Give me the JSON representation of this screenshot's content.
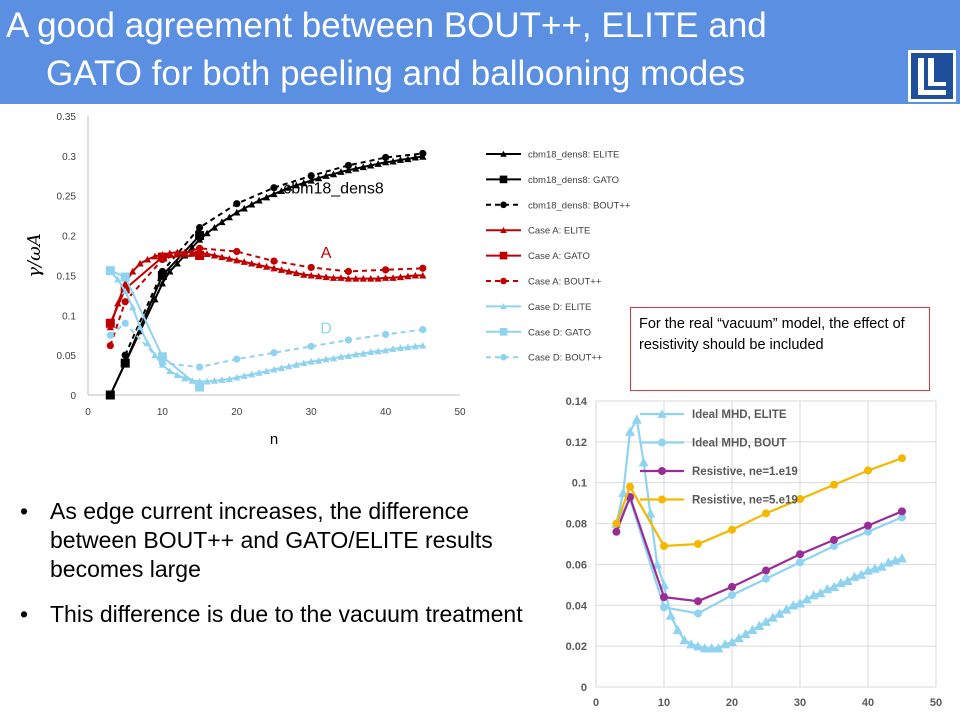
{
  "title": {
    "line1": "A good agreement between BOUT++, ELITE and",
    "line2": "GATO for both peeling and ballooning modes"
  },
  "bullets": [
    "As edge current increases, the difference between BOUT++ and GATO/ELITE results becomes large",
    "This difference is due to the vacuum treatment"
  ],
  "note": "For the real “vacuum” model, the effect of resistivity should be included",
  "colors": {
    "title_bg": "#5b8fe2",
    "black": "#000000",
    "red": "#c00000",
    "cyan": "#8fd3f0",
    "purple": "#9b2c96",
    "orange": "#f5b800"
  },
  "chart_data": [
    {
      "type": "line",
      "xlabel": "n",
      "ylabel": "γ/ωA",
      "xlim": [
        0,
        50
      ],
      "ylim": [
        0,
        0.35
      ],
      "xticks": [
        "0",
        "10",
        "20",
        "30",
        "40",
        "50"
      ],
      "yticks": [
        "0",
        "0.05",
        "0.1",
        "0.15",
        "0.2",
        "0.25",
        "0.3",
        "0.35"
      ],
      "grid": false,
      "legend": "right",
      "annotations": [
        {
          "text": "cbm18_dens8",
          "x": 33,
          "y": 0.253,
          "color": "#000000"
        },
        {
          "text": "A",
          "x": 32,
          "y": 0.172,
          "color": "#c00000"
        },
        {
          "text": "D",
          "x": 32,
          "y": 0.077,
          "color": "#8fd3f0"
        }
      ],
      "series": [
        {
          "name": "cbm18_dens8: ELITE",
          "color": "#000000",
          "dash": false,
          "marker": "triangle",
          "x": [
            3,
            5,
            7,
            9,
            10,
            11,
            12,
            13,
            14,
            15,
            16,
            17,
            18,
            19,
            20,
            21,
            22,
            23,
            24,
            25,
            26,
            27,
            28,
            29,
            30,
            31,
            32,
            33,
            34,
            35,
            36,
            37,
            38,
            39,
            40,
            41,
            42,
            43,
            44,
            45
          ],
          "y": [
            0,
            0.04,
            0.08,
            0.12,
            0.14,
            0.155,
            0.165,
            0.175,
            0.185,
            0.195,
            0.203,
            0.21,
            0.217,
            0.223,
            0.229,
            0.234,
            0.239,
            0.244,
            0.248,
            0.252,
            0.256,
            0.26,
            0.263,
            0.266,
            0.269,
            0.272,
            0.275,
            0.277,
            0.28,
            0.282,
            0.284,
            0.286,
            0.288,
            0.29,
            0.292,
            0.293,
            0.295,
            0.296,
            0.298,
            0.299
          ]
        },
        {
          "name": "cbm18_dens8: GATO",
          "color": "#000000",
          "dash": false,
          "marker": "square",
          "x": [
            3,
            5,
            10,
            15
          ],
          "y": [
            0,
            0.04,
            0.15,
            0.2
          ]
        },
        {
          "name": "cbm18_dens8: BOUT++",
          "color": "#000000",
          "dash": true,
          "marker": "circle",
          "x": [
            5,
            10,
            15,
            20,
            25,
            30,
            35,
            40,
            45
          ],
          "y": [
            0.05,
            0.155,
            0.21,
            0.24,
            0.26,
            0.275,
            0.288,
            0.298,
            0.303
          ]
        },
        {
          "name": "Case A: ELITE",
          "color": "#c00000",
          "dash": false,
          "marker": "triangle",
          "x": [
            3,
            4,
            5,
            6,
            7,
            8,
            9,
            10,
            11,
            12,
            13,
            14,
            15,
            16,
            17,
            18,
            19,
            20,
            21,
            22,
            23,
            24,
            25,
            26,
            27,
            28,
            29,
            30,
            31,
            32,
            33,
            34,
            35,
            36,
            37,
            38,
            39,
            40,
            41,
            42,
            43,
            44,
            45
          ],
          "y": [
            0.085,
            0.115,
            0.14,
            0.155,
            0.165,
            0.17,
            0.174,
            0.176,
            0.178,
            0.179,
            0.179,
            0.179,
            0.178,
            0.177,
            0.175,
            0.173,
            0.171,
            0.169,
            0.167,
            0.165,
            0.163,
            0.161,
            0.159,
            0.157,
            0.155,
            0.153,
            0.151,
            0.15,
            0.149,
            0.148,
            0.147,
            0.147,
            0.146,
            0.146,
            0.146,
            0.146,
            0.146,
            0.147,
            0.147,
            0.148,
            0.149,
            0.15,
            0.15
          ]
        },
        {
          "name": "Case A: GATO",
          "color": "#c00000",
          "dash": false,
          "marker": "square",
          "x": [
            3,
            5,
            10,
            15
          ],
          "y": [
            0.09,
            0.133,
            0.173,
            0.175
          ]
        },
        {
          "name": "Case A: BOUT++",
          "color": "#c00000",
          "dash": true,
          "marker": "circle",
          "x": [
            3,
            5,
            10,
            15,
            20,
            25,
            30,
            35,
            40,
            45
          ],
          "y": [
            0.062,
            0.117,
            0.17,
            0.184,
            0.18,
            0.168,
            0.16,
            0.155,
            0.157,
            0.159
          ]
        },
        {
          "name": "Case D: ELITE",
          "color": "#8fd3f0",
          "dash": false,
          "marker": "triangle",
          "x": [
            3,
            4,
            5,
            6,
            7,
            8,
            9,
            10,
            11,
            12,
            13,
            14,
            15,
            16,
            17,
            18,
            19,
            20,
            21,
            22,
            23,
            24,
            25,
            26,
            27,
            28,
            29,
            30,
            31,
            32,
            33,
            34,
            35,
            36,
            37,
            38,
            39,
            40,
            41,
            42,
            43,
            44,
            45
          ],
          "y": [
            0.155,
            0.145,
            0.13,
            0.11,
            0.085,
            0.065,
            0.05,
            0.038,
            0.03,
            0.025,
            0.021,
            0.018,
            0.017,
            0.017,
            0.018,
            0.019,
            0.02,
            0.022,
            0.024,
            0.026,
            0.028,
            0.03,
            0.032,
            0.034,
            0.036,
            0.038,
            0.04,
            0.042,
            0.043,
            0.045,
            0.046,
            0.048,
            0.049,
            0.051,
            0.052,
            0.054,
            0.055,
            0.056,
            0.058,
            0.059,
            0.06,
            0.061,
            0.062
          ]
        },
        {
          "name": "Case D: GATO",
          "color": "#8fd3f0",
          "dash": false,
          "marker": "square",
          "x": [
            3,
            5,
            10,
            15
          ],
          "y": [
            0.156,
            0.148,
            0.048,
            0.01
          ]
        },
        {
          "name": "Case D: BOUT++",
          "color": "#8fd3f0",
          "dash": true,
          "marker": "circle",
          "x": [
            3,
            5,
            10,
            15,
            20,
            25,
            30,
            35,
            40,
            45
          ],
          "y": [
            0.075,
            0.09,
            0.04,
            0.035,
            0.045,
            0.053,
            0.061,
            0.069,
            0.076,
            0.082
          ]
        }
      ]
    },
    {
      "type": "line",
      "xlim": [
        0,
        50
      ],
      "ylim": [
        0,
        0.14
      ],
      "xticks": [
        "0",
        "10",
        "20",
        "30",
        "40",
        "50"
      ],
      "yticks": [
        "0",
        "0.02",
        "0.04",
        "0.06",
        "0.08",
        "0.1",
        "0.12",
        "0.14"
      ],
      "grid": true,
      "legend": "top-left",
      "series": [
        {
          "name": "Ideal MHD, ELITE",
          "color": "#8fd3f0",
          "marker": "triangle",
          "x": [
            3,
            4,
            5,
            6,
            7,
            8,
            9,
            10,
            11,
            12,
            13,
            14,
            15,
            16,
            17,
            18,
            19,
            20,
            21,
            22,
            23,
            24,
            25,
            26,
            27,
            28,
            29,
            30,
            31,
            32,
            33,
            34,
            35,
            36,
            37,
            38,
            39,
            40,
            41,
            42,
            43,
            44,
            45
          ],
          "y": [
            0.08,
            0.095,
            0.125,
            0.131,
            0.11,
            0.085,
            0.06,
            0.05,
            0.035,
            0.028,
            0.023,
            0.021,
            0.02,
            0.019,
            0.019,
            0.019,
            0.021,
            0.022,
            0.024,
            0.026,
            0.028,
            0.03,
            0.032,
            0.034,
            0.036,
            0.038,
            0.04,
            0.041,
            0.043,
            0.045,
            0.046,
            0.048,
            0.049,
            0.051,
            0.052,
            0.054,
            0.055,
            0.057,
            0.058,
            0.059,
            0.061,
            0.062,
            0.063
          ]
        },
        {
          "name": "Ideal MHD, BOUT",
          "color": "#8fd3f0",
          "marker": "circle",
          "x": [
            3,
            5,
            10,
            15,
            20,
            25,
            30,
            35,
            40,
            45
          ],
          "y": [
            0.08,
            0.092,
            0.039,
            0.036,
            0.045,
            0.053,
            0.061,
            0.069,
            0.076,
            0.083
          ]
        },
        {
          "name": "Resistive, ne=1.e19",
          "color": "#9b2c96",
          "marker": "circle",
          "x": [
            3,
            5,
            10,
            15,
            20,
            25,
            30,
            35,
            40,
            45
          ],
          "y": [
            0.076,
            0.093,
            0.044,
            0.042,
            0.049,
            0.057,
            0.065,
            0.072,
            0.079,
            0.086
          ]
        },
        {
          "name": "Resistive, ne=5.e19",
          "color": "#f5b800",
          "marker": "circle",
          "x": [
            3,
            5,
            10,
            15,
            20,
            25,
            30,
            35,
            40,
            45
          ],
          "y": [
            0.08,
            0.098,
            0.069,
            0.07,
            0.077,
            0.085,
            0.092,
            0.099,
            0.106,
            0.112
          ]
        }
      ]
    }
  ]
}
